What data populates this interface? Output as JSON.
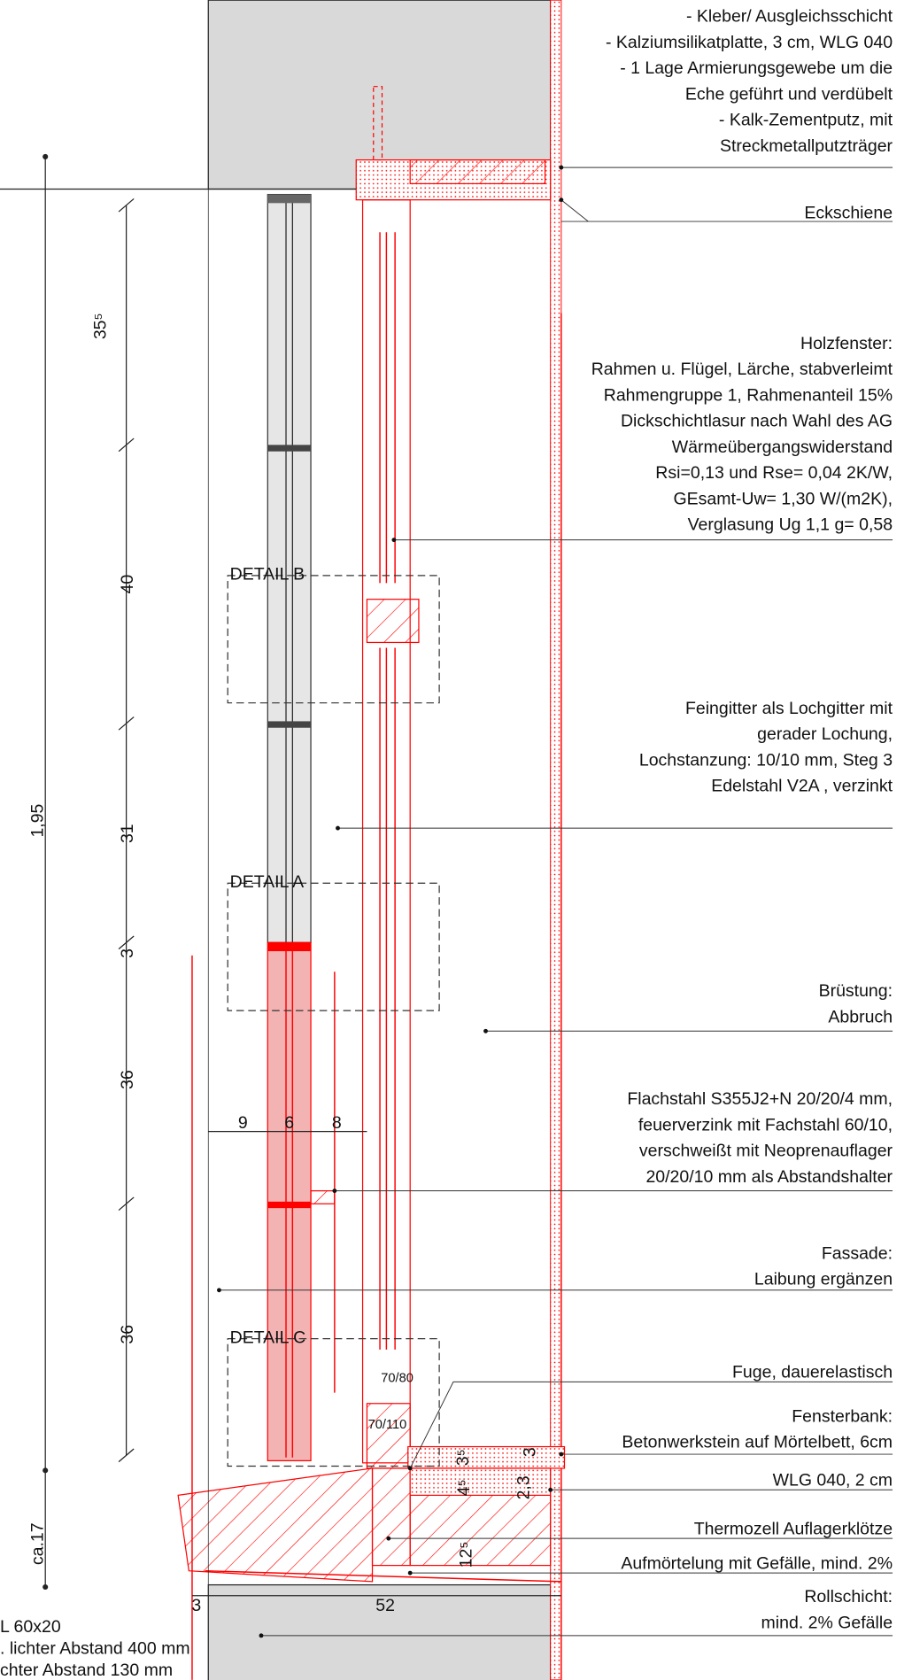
{
  "annotations": [
    {
      "lines": [
        "- Kleber/ Ausgleichsschicht",
        "- Kalziumsilikatplatte, 3 cm, WLG 040",
        "- 1 Lage Armierungsgewebe um die",
        "Eche geführt und verdübelt",
        "- Kalk-Zementputz, mit",
        "Streckmetallputzträger"
      ]
    },
    {
      "lines": [
        "Eckschiene"
      ]
    },
    {
      "lines": [
        "Holzfenster:",
        "Rahmen u. Flügel, Lärche, stabverleimt",
        "Rahmengruppe 1, Rahmenanteil 15%",
        "Dickschichtlasur nach Wahl des AG",
        "Wärmeübergangswiderstand",
        "Rsi=0,13 und Rse= 0,04 2K/W,",
        "GEsamt-Uw= 1,30 W/(m2K),",
        "Verglasung Ug 1,1 g= 0,58"
      ]
    },
    {
      "lines": [
        "Feingitter als Lochgitter mit",
        "gerader Lochung,",
        "Lochstanzung: 10/10 mm, Steg 3",
        "Edelstahl V2A , verzinkt"
      ]
    },
    {
      "lines": [
        "Brüstung:",
        "Abbruch"
      ]
    },
    {
      "lines": [
        "Flachstahl S355J2+N  20/20/4 mm,",
        "feuerverzink mit Fachstahl 60/10,",
        "verschweißt mit Neoprenauflager",
        "20/20/10 mm als Abstandshalter"
      ]
    },
    {
      "lines": [
        "Fassade:",
        "Laibung ergänzen"
      ]
    },
    {
      "lines": [
        "Fuge, dauerelastisch"
      ]
    },
    {
      "lines": [
        "Fensterbank:",
        "Betonwerkstein auf Mörtelbett, 6cm"
      ]
    },
    {
      "lines": [
        "WLG 040, 2 cm"
      ]
    },
    {
      "lines": [
        "Thermozell Auflagerklötze"
      ]
    },
    {
      "lines": [
        "Aufmörtelung mit Gefälle, mind. 2%"
      ]
    },
    {
      "lines": [
        "Rollschicht:",
        "mind. 2% Gefälle"
      ]
    }
  ],
  "details": [
    "DETAIL B",
    "DETAIL A",
    "DETAIL C"
  ],
  "dimensions": [
    "1,95",
    "35⁵",
    "40",
    "31",
    "3",
    "36",
    "36",
    "ca.17",
    "9",
    "6",
    "8",
    "3",
    "52",
    "3⁵",
    "3",
    "4⁵",
    "2,3",
    "12⁵"
  ],
  "profiles": [
    "70/80",
    "70/110"
  ],
  "notes": [
    "L 60x20",
    ". lichter Abstand 400 mm",
    "chter Abstand 130 mm"
  ]
}
